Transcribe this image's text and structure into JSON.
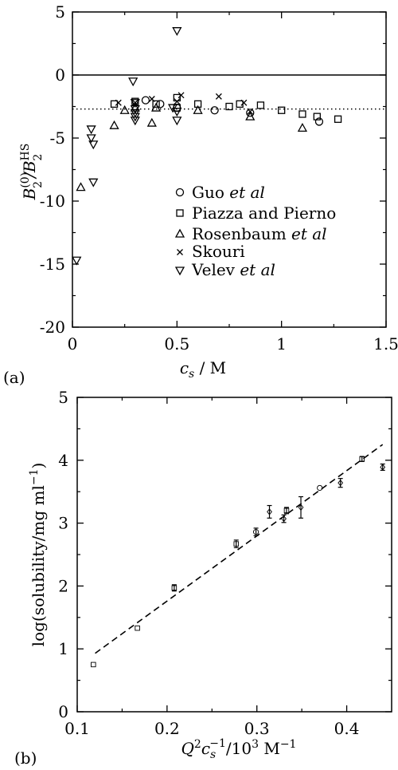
{
  "chart_data": [
    {
      "type": "scatter",
      "panel_label": "(a)",
      "xlabel": {
        "main": "c",
        "sub": "s",
        "tail": " / M"
      },
      "ylabel": {
        "base": "B",
        "sup0": "(0)",
        "sub2": "2",
        "slash": "/B",
        "supHS": "HS"
      },
      "xlim": [
        0,
        1.5
      ],
      "ylim": [
        -20,
        5
      ],
      "xticks": [
        0,
        0.5,
        1,
        1.5
      ],
      "xticklabels": [
        "0",
        "0.5",
        "1",
        "1.5"
      ],
      "yticks": [
        -20,
        -15,
        -10,
        -5,
        0,
        5
      ],
      "yticklabels": [
        "-20",
        "-15",
        "-10",
        "-5",
        "0",
        "5"
      ],
      "reference_lines": [
        {
          "y": 0,
          "style": "solid"
        },
        {
          "y": -2.7,
          "style": "dotted"
        }
      ],
      "legend": {
        "placement": "lower-right",
        "entries": [
          {
            "marker": "circle",
            "label_pre": "Guo ",
            "label_em": "et al"
          },
          {
            "marker": "square",
            "label_pre": "Piazza and Pierno",
            "label_em": ""
          },
          {
            "marker": "triangle-up",
            "label_pre": "Rosenbaum ",
            "label_em": "et al"
          },
          {
            "marker": "x",
            "label_pre": "Skouri",
            "label_em": ""
          },
          {
            "marker": "triangle-down",
            "label_pre": "Velev ",
            "label_em": "et al"
          }
        ]
      },
      "series": [
        {
          "marker": "circle",
          "points": [
            [
              0.35,
              -2.0
            ],
            [
              0.42,
              -2.3
            ],
            [
              0.5,
              -2.6
            ],
            [
              0.68,
              -2.8
            ],
            [
              0.85,
              -3.0
            ],
            [
              1.18,
              -3.7
            ]
          ]
        },
        {
          "marker": "square",
          "points": [
            [
              0.2,
              -2.3
            ],
            [
              0.3,
              -2.1
            ],
            [
              0.4,
              -2.3
            ],
            [
              0.5,
              -1.8
            ],
            [
              0.5,
              -2.6
            ],
            [
              0.6,
              -2.3
            ],
            [
              0.75,
              -2.5
            ],
            [
              0.8,
              -2.3
            ],
            [
              0.9,
              -2.4
            ],
            [
              1.0,
              -2.8
            ],
            [
              1.1,
              -3.1
            ],
            [
              1.17,
              -3.3
            ],
            [
              1.27,
              -3.5
            ]
          ]
        },
        {
          "marker": "triangle-up",
          "points": [
            [
              0.04,
              -8.9
            ],
            [
              0.2,
              -4.0
            ],
            [
              0.25,
              -2.8
            ],
            [
              0.3,
              -2.6
            ],
            [
              0.38,
              -3.8
            ],
            [
              0.4,
              -2.6
            ],
            [
              0.6,
              -2.8
            ],
            [
              0.85,
              -3.3
            ],
            [
              1.1,
              -4.2
            ]
          ]
        },
        {
          "marker": "x",
          "points": [
            [
              0.22,
              -2.2
            ],
            [
              0.3,
              -2.2
            ],
            [
              0.38,
              -1.9
            ],
            [
              0.5,
              -2.1
            ],
            [
              0.52,
              -1.6
            ],
            [
              0.7,
              -1.7
            ],
            [
              0.82,
              -2.2
            ],
            [
              0.85,
              -2.9
            ]
          ]
        },
        {
          "marker": "triangle-down",
          "points": [
            [
              0.02,
              -14.7
            ],
            [
              0.1,
              -8.5
            ],
            [
              0.09,
              -4.3
            ],
            [
              0.09,
              -5.0
            ],
            [
              0.1,
              -5.5
            ],
            [
              0.29,
              -0.5
            ],
            [
              0.3,
              -2.2
            ],
            [
              0.3,
              -2.7
            ],
            [
              0.3,
              -3.0
            ],
            [
              0.3,
              -3.3
            ],
            [
              0.3,
              -3.6
            ],
            [
              0.48,
              -2.6
            ],
            [
              0.5,
              -2.9
            ],
            [
              0.5,
              -3.6
            ],
            [
              0.5,
              3.5
            ]
          ]
        }
      ]
    },
    {
      "type": "scatter",
      "panel_label": "(b)",
      "xlabel": {
        "q": "Q",
        "qsup": "2",
        "c": "c",
        "csub": "s",
        "csup": "−1",
        "tail": "/10",
        "tensup": "3",
        "unit": " M",
        "unitsup": "−1"
      },
      "ylabel": {
        "main": "log(solubility/mg ml",
        "sup": "−1",
        "close": ")"
      },
      "xlim": [
        0.1,
        0.45
      ],
      "ylim": [
        0,
        5
      ],
      "xticks": [
        0.1,
        0.2,
        0.3,
        0.4
      ],
      "xticklabels": [
        "0.1",
        "0.2",
        "0.3",
        "0.4"
      ],
      "yticks": [
        0,
        1,
        2,
        3,
        4,
        5
      ],
      "yticklabels": [
        "0",
        "1",
        "2",
        "3",
        "4",
        "5"
      ],
      "fit_line": {
        "style": "dashed",
        "x": [
          0.12,
          0.44
        ],
        "y": [
          0.93,
          4.25
        ]
      },
      "series": [
        {
          "marker": "square",
          "points": [
            {
              "x": 0.118,
              "y": 0.75,
              "err": 0
            },
            {
              "x": 0.167,
              "y": 1.33,
              "err": 0
            },
            {
              "x": 0.208,
              "y": 1.97,
              "err": 0.05
            },
            {
              "x": 0.277,
              "y": 2.67,
              "err": 0.06
            },
            {
              "x": 0.333,
              "y": 3.2,
              "err": 0.05
            },
            {
              "x": 0.417,
              "y": 4.02,
              "err": 0.04
            }
          ]
        },
        {
          "marker": "circle",
          "points": [
            {
              "x": 0.299,
              "y": 2.86,
              "err": 0.06
            },
            {
              "x": 0.37,
              "y": 3.56,
              "err": 0
            }
          ]
        },
        {
          "marker": "diamond",
          "points": [
            {
              "x": 0.314,
              "y": 3.18,
              "err": 0.1
            },
            {
              "x": 0.33,
              "y": 3.07,
              "err": 0.06
            },
            {
              "x": 0.349,
              "y": 3.25,
              "err": 0.17
            },
            {
              "x": 0.393,
              "y": 3.64,
              "err": 0.07
            },
            {
              "x": 0.44,
              "y": 3.89,
              "err": 0.05
            }
          ]
        }
      ]
    }
  ]
}
